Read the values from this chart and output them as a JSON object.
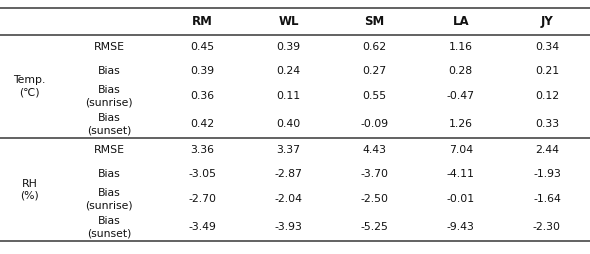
{
  "header": [
    "RM",
    "WL",
    "SM",
    "LA",
    "JY"
  ],
  "row_groups": [
    {
      "group_label": "Temp.\n(℃)",
      "rows": [
        {
          "metric": "RMSE",
          "values": [
            "0.45",
            "0.39",
            "0.62",
            "1.16",
            "0.34"
          ]
        },
        {
          "metric": "Bias",
          "values": [
            "0.39",
            "0.24",
            "0.27",
            "0.28",
            "0.21"
          ]
        },
        {
          "metric": "Bias\n(sunrise)",
          "values": [
            "0.36",
            "0.11",
            "0.55",
            "-0.47",
            "0.12"
          ]
        },
        {
          "metric": "Bias\n(sunset)",
          "values": [
            "0.42",
            "0.40",
            "-0.09",
            "1.26",
            "0.33"
          ]
        }
      ]
    },
    {
      "group_label": "RH\n(%)",
      "rows": [
        {
          "metric": "RMSE",
          "values": [
            "3.36",
            "3.37",
            "4.43",
            "7.04",
            "2.44"
          ]
        },
        {
          "metric": "Bias",
          "values": [
            "-3.05",
            "-2.87",
            "-3.70",
            "-4.11",
            "-1.93"
          ]
        },
        {
          "metric": "Bias\n(sunrise)",
          "values": [
            "-2.70",
            "-2.04",
            "-2.50",
            "-0.01",
            "-1.64"
          ]
        },
        {
          "metric": "Bias\n(sunset)",
          "values": [
            "-3.49",
            "-3.93",
            "-5.25",
            "-9.43",
            "-2.30"
          ]
        }
      ]
    }
  ],
  "background_color": "#ffffff",
  "line_color": "#555555",
  "text_color": "#111111",
  "font_size": 7.8,
  "header_font_size": 8.5
}
